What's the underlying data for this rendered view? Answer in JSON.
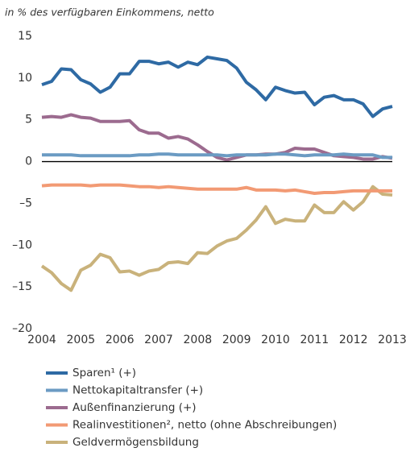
{
  "chart_data": {
    "type": "line",
    "title": "in % des verfügbaren Einkommens, netto",
    "x": [
      2004,
      2004.25,
      2004.5,
      2004.75,
      2005,
      2005.25,
      2005.5,
      2005.75,
      2006,
      2006.25,
      2006.5,
      2006.75,
      2007,
      2007.25,
      2007.5,
      2007.75,
      2008,
      2008.25,
      2008.5,
      2008.75,
      2009,
      2009.25,
      2009.5,
      2009.75,
      2010,
      2010.25,
      2010.5,
      2010.75,
      2011,
      2011.25,
      2011.5,
      2011.75,
      2012,
      2012.25,
      2012.5,
      2012.75,
      2013
    ],
    "xlim": [
      2004,
      2013
    ],
    "xticks": [
      2004,
      2005,
      2006,
      2007,
      2008,
      2009,
      2010,
      2011,
      2012,
      2013
    ],
    "ylim": [
      -20,
      15
    ],
    "yticks": [
      {
        "value": -20,
        "label": "–20"
      },
      {
        "value": -15,
        "label": "–15"
      },
      {
        "value": -10,
        "label": "–10"
      },
      {
        "value": -5,
        "label": "–5"
      },
      0,
      5,
      10,
      15
    ],
    "grid": false,
    "series": [
      {
        "name": "Sparen¹ (+)",
        "color": "#2e6aa4",
        "values": [
          9.2,
          9.6,
          11.1,
          11.0,
          9.8,
          9.3,
          8.3,
          8.9,
          10.5,
          10.5,
          12.0,
          12.0,
          11.7,
          11.9,
          11.3,
          11.9,
          11.6,
          12.5,
          12.3,
          12.1,
          11.2,
          9.5,
          8.6,
          7.4,
          8.9,
          8.5,
          8.2,
          8.3,
          6.8,
          7.7,
          7.9,
          7.4,
          7.4,
          6.9,
          5.4,
          6.3,
          6.6
        ]
      },
      {
        "name": "Nettokapitaltransfer (+)",
        "color": "#6b9bc3",
        "values": [
          0.8,
          0.8,
          0.8,
          0.8,
          0.7,
          0.7,
          0.7,
          0.7,
          0.7,
          0.7,
          0.8,
          0.8,
          0.9,
          0.9,
          0.8,
          0.8,
          0.8,
          0.8,
          0.8,
          0.7,
          0.8,
          0.8,
          0.8,
          0.8,
          0.9,
          0.9,
          0.8,
          0.7,
          0.8,
          0.8,
          0.8,
          0.9,
          0.8,
          0.8,
          0.8,
          0.5,
          0.5
        ]
      },
      {
        "name": "Außenfinanzierung (+)",
        "color": "#9c6b8f",
        "values": [
          5.3,
          5.4,
          5.3,
          5.6,
          5.3,
          5.2,
          4.8,
          4.8,
          4.8,
          4.9,
          3.8,
          3.4,
          3.4,
          2.8,
          3.0,
          2.7,
          2.0,
          1.2,
          0.5,
          0.2,
          0.5,
          0.8,
          0.8,
          0.9,
          0.9,
          1.1,
          1.6,
          1.5,
          1.5,
          1.1,
          0.7,
          0.6,
          0.5,
          0.3,
          0.3,
          0.6,
          0.4
        ]
      },
      {
        "name": "Realinvestitionen², netto (ohne Abschreibungen)",
        "color": "#f29a74",
        "values": [
          -2.9,
          -2.8,
          -2.8,
          -2.8,
          -2.8,
          -2.9,
          -2.8,
          -2.8,
          -2.8,
          -2.9,
          -3.0,
          -3.0,
          -3.1,
          -3.0,
          -3.1,
          -3.2,
          -3.3,
          -3.3,
          -3.3,
          -3.3,
          -3.3,
          -3.1,
          -3.4,
          -3.4,
          -3.4,
          -3.5,
          -3.4,
          -3.6,
          -3.8,
          -3.7,
          -3.7,
          -3.6,
          -3.5,
          -3.5,
          -3.5,
          -3.5,
          -3.5
        ]
      },
      {
        "name": "Geldvermögensbildung",
        "color": "#c9b27b",
        "values": [
          -12.5,
          -13.3,
          -14.6,
          -15.4,
          -13.0,
          -12.4,
          -11.1,
          -11.5,
          -13.2,
          -13.1,
          -13.6,
          -13.1,
          -12.9,
          -12.1,
          -12.0,
          -12.2,
          -10.9,
          -11.0,
          -10.1,
          -9.5,
          -9.2,
          -8.2,
          -7.0,
          -5.4,
          -7.4,
          -6.9,
          -7.1,
          -7.1,
          -5.2,
          -6.1,
          -6.1,
          -4.8,
          -5.8,
          -4.8,
          -3.0,
          -3.9,
          -4.0
        ]
      }
    ]
  }
}
